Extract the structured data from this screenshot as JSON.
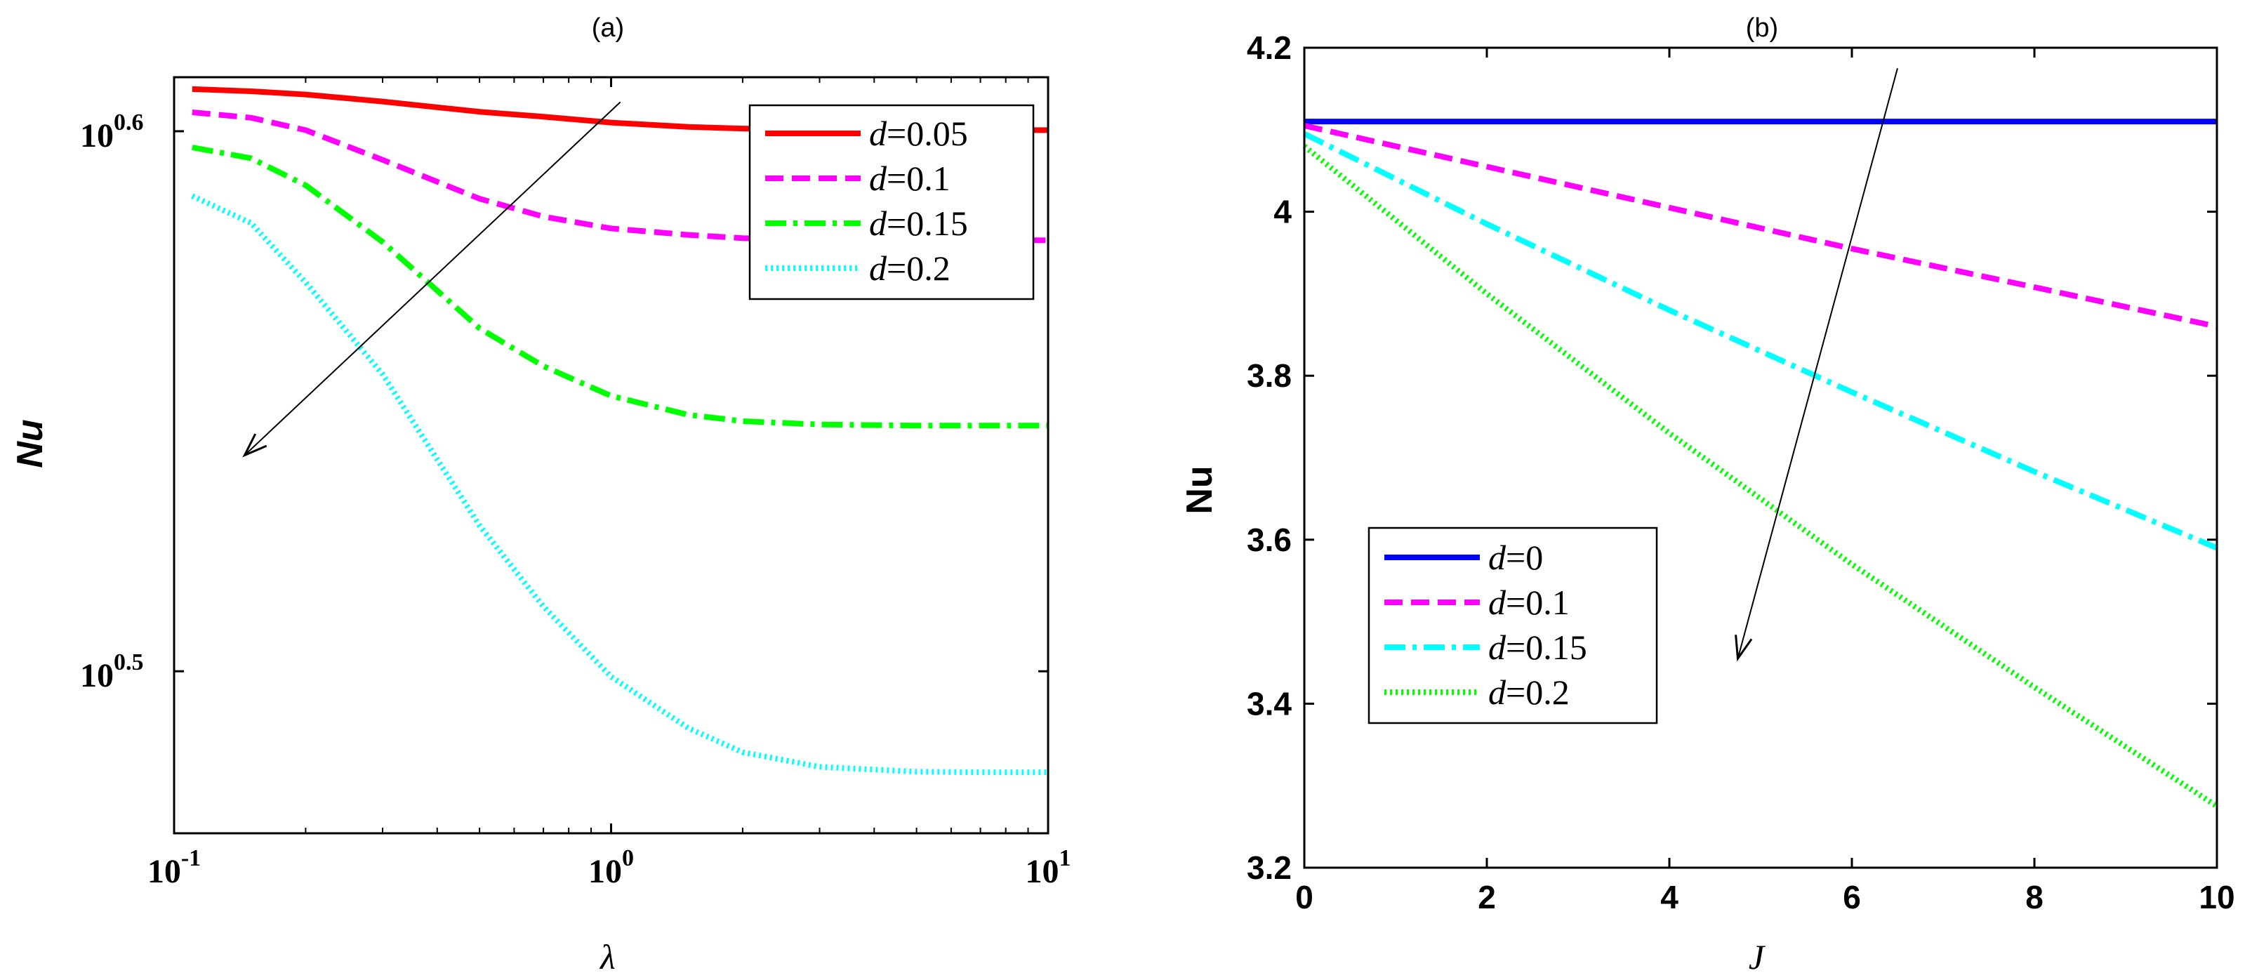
{
  "chart_data": [
    {
      "type": "line",
      "panel": "(a)",
      "title": "(a)",
      "xlabel": "λ",
      "ylabel": "Nu",
      "xscale": "log",
      "yscale": "log",
      "xlim": [
        0.1,
        10
      ],
      "ylim_log10": [
        0.47,
        0.61
      ],
      "x_ticks": [
        {
          "value": 0.1,
          "base": "10",
          "exp": "-1"
        },
        {
          "value": 1,
          "base": "10",
          "exp": "0"
        },
        {
          "value": 10,
          "base": "10",
          "exp": "1"
        }
      ],
      "y_ticks": [
        {
          "log10": 0.5,
          "base": "10",
          "exp": "0.5"
        },
        {
          "log10": 0.6,
          "base": "10",
          "exp": "0.6"
        }
      ],
      "legend_position": "top-right",
      "series": [
        {
          "name": "d=0.05",
          "label_var": "d",
          "label_val": "=0.05",
          "color": "#ff0000",
          "dash": "solid",
          "x": [
            0.11,
            0.15,
            0.2,
            0.3,
            0.5,
            0.7,
            1,
            1.5,
            2,
            3,
            5,
            7,
            10
          ],
          "log10_y": [
            0.6078,
            0.6074,
            0.6068,
            0.6055,
            0.6036,
            0.6027,
            0.6016,
            0.6008,
            0.6005,
            0.6003,
            0.6002,
            0.6002,
            0.6002
          ]
        },
        {
          "name": "d=0.1",
          "label_var": "d",
          "label_val": "=0.1",
          "color": "#ff00ff",
          "dash": "dashed",
          "x": [
            0.11,
            0.15,
            0.2,
            0.3,
            0.5,
            0.7,
            1,
            1.5,
            2,
            3,
            5,
            7,
            10
          ],
          "log10_y": [
            0.6035,
            0.6025,
            0.6002,
            0.5947,
            0.5875,
            0.5842,
            0.582,
            0.5808,
            0.5802,
            0.5799,
            0.5798,
            0.5798,
            0.5798
          ]
        },
        {
          "name": "d=0.15",
          "label_var": "d",
          "label_val": "=0.15",
          "color": "#00ff00",
          "dash": "dashdot",
          "x": [
            0.11,
            0.15,
            0.2,
            0.3,
            0.5,
            0.7,
            1,
            1.5,
            2,
            3,
            5,
            7,
            10
          ],
          "log10_y": [
            0.597,
            0.595,
            0.59,
            0.5795,
            0.5635,
            0.5565,
            0.551,
            0.5475,
            0.5463,
            0.5457,
            0.5455,
            0.5455,
            0.5455
          ]
        },
        {
          "name": "d=0.2",
          "label_var": "d",
          "label_val": "=0.2",
          "color": "#00ffff",
          "dash": "dotted",
          "x": [
            0.11,
            0.15,
            0.2,
            0.3,
            0.5,
            0.7,
            1,
            1.5,
            2,
            3,
            5,
            7,
            10
          ],
          "log10_y": [
            0.588,
            0.583,
            0.572,
            0.555,
            0.527,
            0.512,
            0.499,
            0.4895,
            0.485,
            0.4823,
            0.4814,
            0.4813,
            0.4813
          ]
        }
      ],
      "arrow": {
        "from": {
          "x": 1.05,
          "log10_y": 0.6054
        },
        "to": {
          "x": 0.145,
          "log10_y": 0.54
        }
      }
    },
    {
      "type": "line",
      "panel": "(b)",
      "title": "(b)",
      "xlabel": "J",
      "ylabel": "Nu",
      "xscale": "linear",
      "yscale": "linear",
      "xlim": [
        0,
        10
      ],
      "ylim": [
        3.2,
        4.2
      ],
      "x_ticks": [
        "0",
        "2",
        "4",
        "6",
        "8",
        "10"
      ],
      "y_ticks": [
        "3.2",
        "3.4",
        "3.6",
        "3.8",
        "4",
        "4.2"
      ],
      "legend_position": "lower-left",
      "series": [
        {
          "name": "d=0",
          "label_var": "d",
          "label_val": "=0",
          "color": "#0000ff",
          "dash": "solid",
          "x": [
            0,
            10
          ],
          "y": [
            4.11,
            4.11
          ]
        },
        {
          "name": "d=0.1",
          "label_var": "d",
          "label_val": "=0.1",
          "color": "#ff00ff",
          "dash": "dashed",
          "x": [
            0,
            2,
            4,
            6,
            8,
            10
          ],
          "y": [
            4.105,
            4.055,
            4.005,
            3.955,
            3.908,
            3.86
          ]
        },
        {
          "name": "d=0.15",
          "label_var": "d",
          "label_val": "=0.15",
          "color": "#00ffff",
          "dash": "dashdot",
          "x": [
            0,
            2,
            4,
            6,
            8,
            10
          ],
          "y": [
            4.095,
            3.985,
            3.88,
            3.78,
            3.683,
            3.59
          ]
        },
        {
          "name": "d=0.2",
          "label_var": "d",
          "label_val": "=0.2",
          "color": "#00ff00",
          "dash": "dotted",
          "x": [
            0,
            2,
            4,
            6,
            8,
            10
          ],
          "y": [
            4.08,
            3.9,
            3.73,
            3.57,
            3.42,
            3.275
          ]
        }
      ],
      "arrow": {
        "from": {
          "x": 6.5,
          "y": 4.175
        },
        "to": {
          "x": 4.75,
          "y": 3.455
        }
      }
    }
  ]
}
